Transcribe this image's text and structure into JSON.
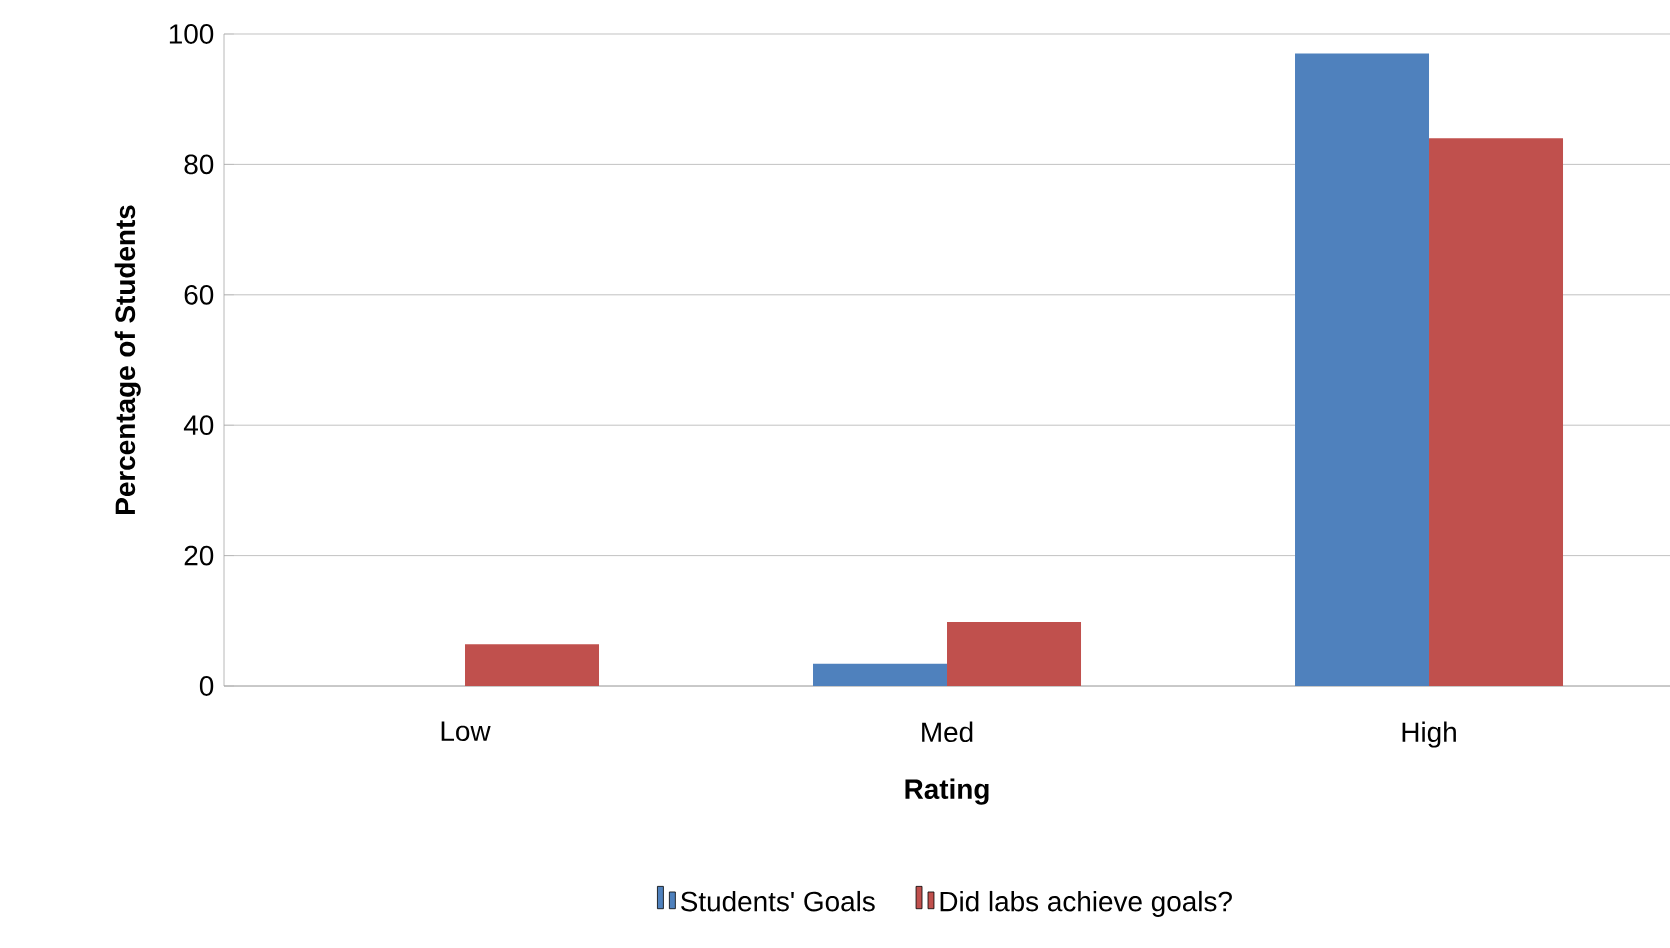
{
  "chart_data": {
    "type": "bar",
    "xlabel": "Rating",
    "ylabel": "Percentage of Students",
    "categories": [
      "Low",
      "Med",
      "High"
    ],
    "series": [
      {
        "name": "Students' Goals",
        "color": "#4f81bd",
        "values": [
          0,
          3.4,
          97
        ]
      },
      {
        "name": "Did labs achieve goals?",
        "color": "#c0504d",
        "values": [
          6.4,
          9.8,
          84
        ]
      }
    ],
    "ylim": [
      0,
      100
    ],
    "yticks": [
      0,
      20,
      40,
      60,
      80,
      100
    ],
    "grid": "y",
    "legend": "bottom"
  }
}
